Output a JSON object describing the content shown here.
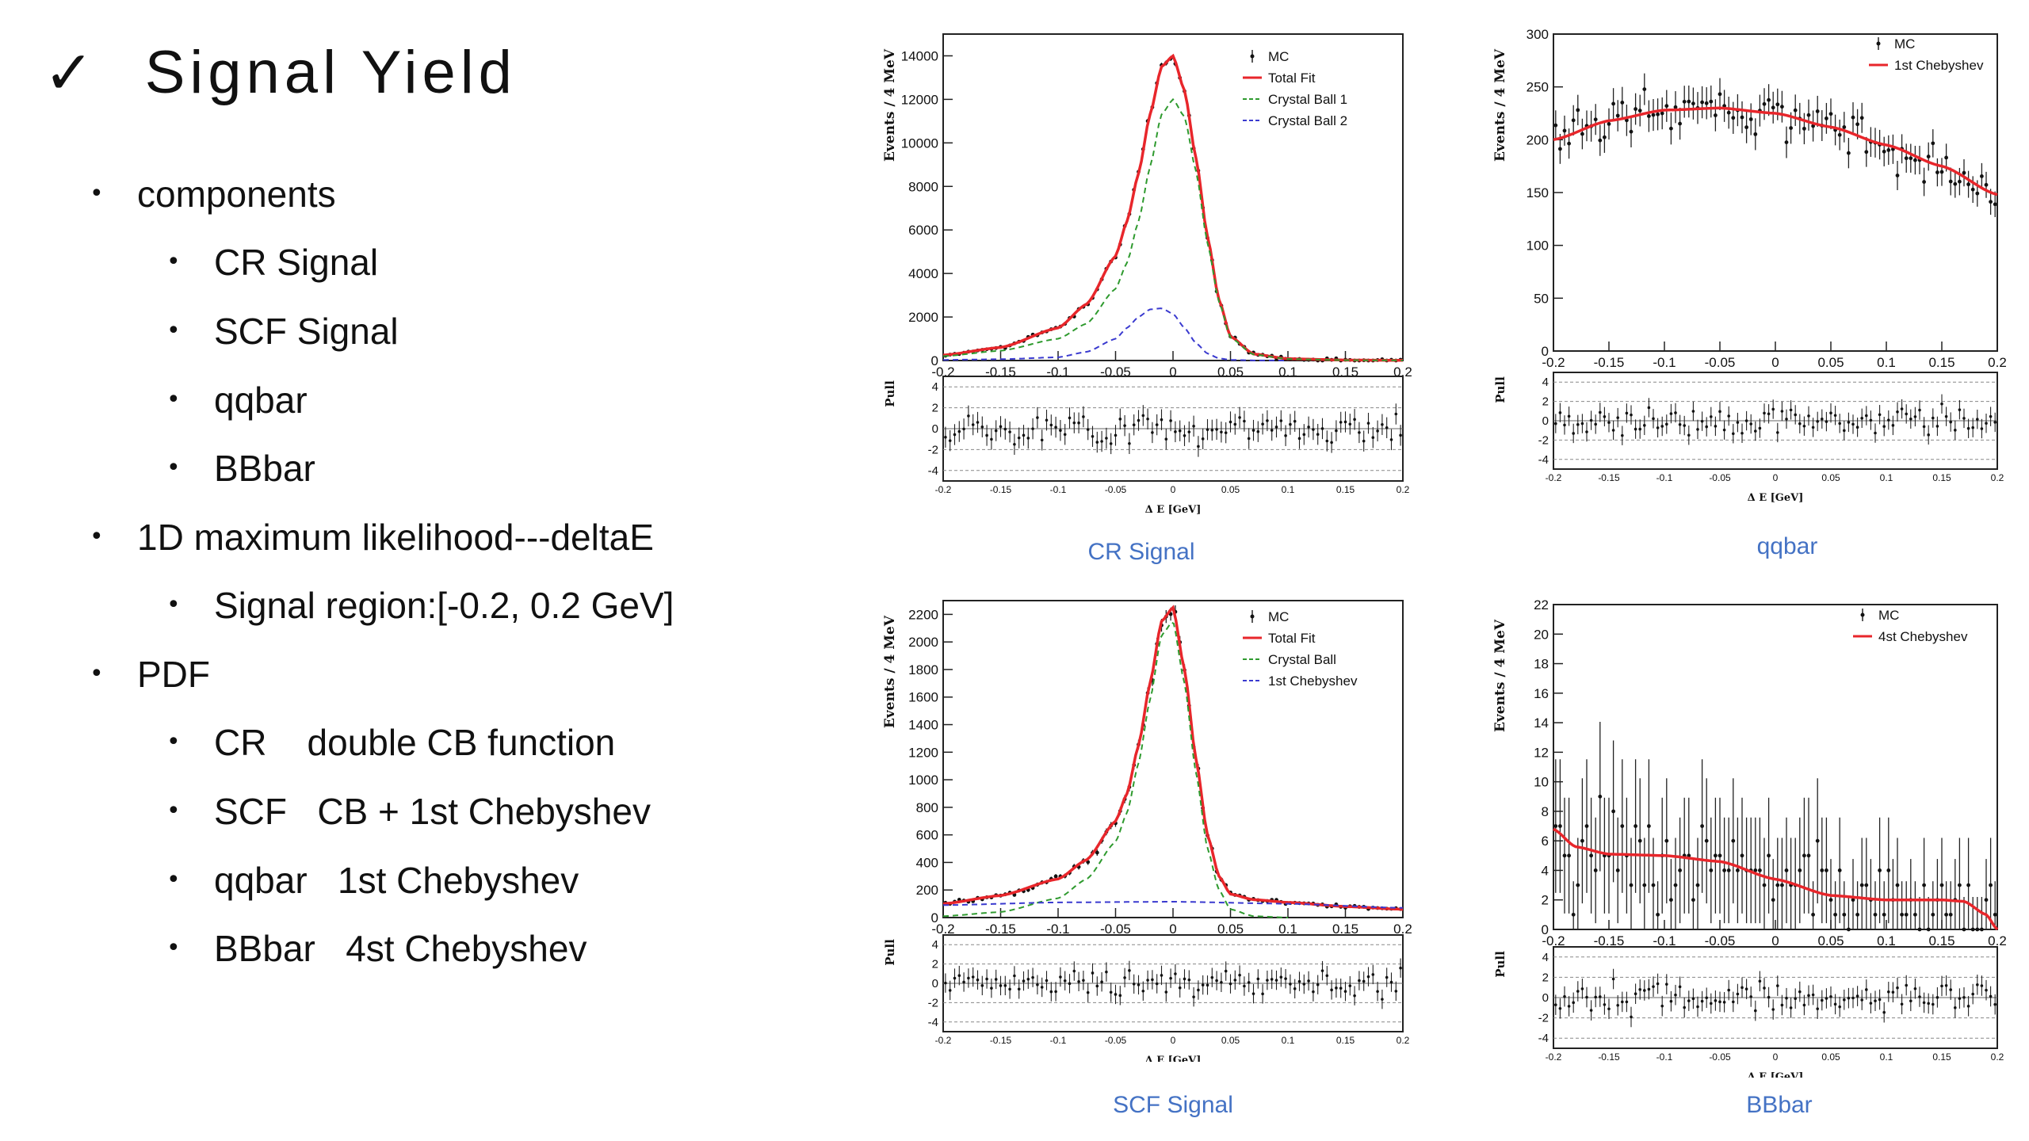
{
  "slide": {
    "check_glyph": "✓",
    "title": "Signal Yield",
    "bullets": [
      {
        "level": 1,
        "text": "components"
      },
      {
        "level": 2,
        "text": "CR Signal"
      },
      {
        "level": 2,
        "text": "SCF Signal"
      },
      {
        "level": 2,
        "text": "qqbar"
      },
      {
        "level": 2,
        "text": "BBbar"
      },
      {
        "level": 1,
        "text": "1D maximum likelihood---deltaE"
      },
      {
        "level": 2,
        "text": "Signal region:[-0.2, 0.2 GeV]"
      },
      {
        "level": 1,
        "text": "PDF"
      },
      {
        "level": 2,
        "text": "CR    double CB function"
      },
      {
        "level": 2,
        "text": "SCF   CB + 1st Chebyshev"
      },
      {
        "level": 2,
        "text": "qqbar   1st Chebyshev"
      },
      {
        "level": 2,
        "text": "BBbar   4st Chebyshev"
      }
    ],
    "bullet_glyph": "•"
  },
  "colors": {
    "fit": "#e8262b",
    "cb1": "#2e9a2e",
    "cb2": "#3a3acf",
    "caption": "#4472c4"
  },
  "chart_data": [
    {
      "id": "cr",
      "type": "line",
      "caption": "CR Signal",
      "ylabel": "Events / 4 MeV",
      "xlabel": "Δ E [GeV]",
      "pull_label": "Pull",
      "xlim": [
        -0.2,
        0.2
      ],
      "ylim": [
        0,
        15000
      ],
      "xticks": [
        "-0.2",
        "-0.15",
        "-0.1",
        "-0.05",
        "0",
        "0.05",
        "0.1",
        "0.15",
        "0.2"
      ],
      "yticks": [
        "0",
        "2000",
        "4000",
        "6000",
        "8000",
        "10000",
        "12000",
        "14000"
      ],
      "pull_ticks": [
        "4",
        "2",
        "0",
        "-2",
        "-4"
      ],
      "legend": [
        "MC",
        "Total Fit",
        "Crystal Ball 1",
        "Crystal Ball 2"
      ],
      "series": [
        {
          "name": "Total Fit",
          "x": [
            -0.2,
            -0.15,
            -0.1,
            -0.075,
            -0.05,
            -0.04,
            -0.03,
            -0.02,
            -0.01,
            0,
            0.01,
            0.02,
            0.03,
            0.04,
            0.05,
            0.07,
            0.1,
            0.15,
            0.2
          ],
          "y": [
            250,
            600,
            1500,
            2600,
            4800,
            6400,
            8600,
            11300,
            13500,
            14000,
            12400,
            9300,
            5700,
            2800,
            1100,
            300,
            80,
            20,
            10
          ]
        },
        {
          "name": "Crystal Ball 1",
          "x": [
            -0.2,
            -0.15,
            -0.1,
            -0.075,
            -0.05,
            -0.04,
            -0.03,
            -0.02,
            -0.01,
            0,
            0.01,
            0.02,
            0.03,
            0.04,
            0.05,
            0.07,
            0.1,
            0.15,
            0.2
          ],
          "y": [
            200,
            450,
            1000,
            1700,
            3300,
            4500,
            6400,
            8900,
            11300,
            12000,
            11200,
            8700,
            5400,
            2700,
            1050,
            280,
            70,
            15,
            5
          ]
        },
        {
          "name": "Crystal Ball 2",
          "x": [
            -0.2,
            -0.15,
            -0.1,
            -0.075,
            -0.05,
            -0.04,
            -0.03,
            -0.02,
            -0.01,
            0,
            0.01,
            0.02,
            0.03,
            0.04,
            0.05,
            0.07,
            0.1
          ],
          "y": [
            30,
            60,
            150,
            400,
            1000,
            1500,
            2000,
            2350,
            2400,
            2150,
            1500,
            800,
            320,
            100,
            30,
            5,
            0
          ]
        }
      ]
    },
    {
      "id": "qq",
      "type": "line",
      "caption": "qqbar",
      "ylabel": "Events / 4 MeV",
      "xlabel": "Δ E [GeV]",
      "pull_label": "Pull",
      "xlim": [
        -0.2,
        0.2
      ],
      "ylim": [
        0,
        300
      ],
      "xticks": [
        "-0.2",
        "-0.15",
        "-0.1",
        "-0.05",
        "0",
        "0.05",
        "0.1",
        "0.15",
        "0.2"
      ],
      "yticks": [
        "0",
        "50",
        "100",
        "150",
        "200",
        "250",
        "300"
      ],
      "pull_ticks": [
        "4",
        "2",
        "0",
        "-2",
        "-4"
      ],
      "legend": [
        "MC",
        "1st Chebyshev"
      ],
      "series": [
        {
          "name": "1st Chebyshev",
          "x": [
            -0.2,
            -0.15,
            -0.1,
            -0.05,
            0,
            0.05,
            0.1,
            0.15,
            0.2
          ],
          "y": [
            200,
            218,
            228,
            230,
            225,
            212,
            195,
            175,
            148
          ]
        }
      ]
    },
    {
      "id": "scf",
      "type": "line",
      "caption": "SCF Signal",
      "ylabel": "Events / 4 MeV",
      "xlabel": "Δ E [GeV]",
      "pull_label": "Pull",
      "xlim": [
        -0.2,
        0.2
      ],
      "ylim": [
        0,
        2300
      ],
      "xticks": [
        "-0.2",
        "-0.15",
        "-0.1",
        "-0.05",
        "0",
        "0.05",
        "0.1",
        "0.15",
        "0.2"
      ],
      "yticks": [
        "0",
        "200",
        "400",
        "600",
        "800",
        "1000",
        "1200",
        "1400",
        "1600",
        "1800",
        "2000",
        "2200"
      ],
      "pull_ticks": [
        "4",
        "2",
        "0",
        "-2",
        "-4"
      ],
      "legend": [
        "MC",
        "Total Fit",
        "Crystal Ball",
        "1st Chebyshev"
      ],
      "series": [
        {
          "name": "Total Fit",
          "x": [
            -0.2,
            -0.15,
            -0.1,
            -0.075,
            -0.05,
            -0.04,
            -0.03,
            -0.02,
            -0.01,
            0,
            0.01,
            0.02,
            0.03,
            0.04,
            0.05,
            0.07,
            0.1,
            0.15,
            0.2
          ],
          "y": [
            100,
            160,
            280,
            420,
            700,
            900,
            1250,
            1700,
            2150,
            2250,
            1800,
            1150,
            600,
            300,
            170,
            130,
            110,
            80,
            60
          ]
        },
        {
          "name": "Crystal Ball",
          "x": [
            -0.2,
            -0.15,
            -0.1,
            -0.075,
            -0.05,
            -0.04,
            -0.03,
            -0.02,
            -0.01,
            0,
            0.01,
            0.02,
            0.03,
            0.04,
            0.05,
            0.07,
            0.1
          ],
          "y": [
            10,
            40,
            140,
            280,
            550,
            760,
            1120,
            1580,
            2050,
            2150,
            1700,
            1050,
            500,
            200,
            60,
            10,
            0
          ]
        },
        {
          "name": "1st Chebyshev",
          "x": [
            -0.2,
            -0.1,
            0,
            0.1,
            0.2
          ],
          "y": [
            90,
            110,
            115,
            100,
            70
          ]
        }
      ]
    },
    {
      "id": "bb",
      "type": "line",
      "caption": "BBbar",
      "ylabel": "Events / 4 MeV",
      "xlabel": "Δ E [GeV]",
      "pull_label": "Pull",
      "xlim": [
        -0.2,
        0.2
      ],
      "ylim": [
        0,
        22
      ],
      "xticks": [
        "-0.2",
        "-0.15",
        "-0.1",
        "-0.05",
        "0",
        "0.05",
        "0.1",
        "0.15",
        "0.2"
      ],
      "yticks": [
        "0",
        "2",
        "4",
        "6",
        "8",
        "10",
        "12",
        "14",
        "16",
        "18",
        "20",
        "22"
      ],
      "pull_ticks": [
        "4",
        "2",
        "0",
        "-2",
        "-4"
      ],
      "legend": [
        "MC",
        "4st Chebyshev"
      ],
      "series": [
        {
          "name": "4st Chebyshev",
          "x": [
            -0.2,
            -0.18,
            -0.15,
            -0.1,
            -0.05,
            0,
            0.05,
            0.1,
            0.15,
            0.17,
            0.19,
            0.2
          ],
          "y": [
            6.8,
            5.6,
            5.1,
            5.0,
            4.6,
            3.4,
            2.3,
            2.0,
            2.0,
            1.9,
            1.0,
            0
          ]
        }
      ]
    }
  ]
}
